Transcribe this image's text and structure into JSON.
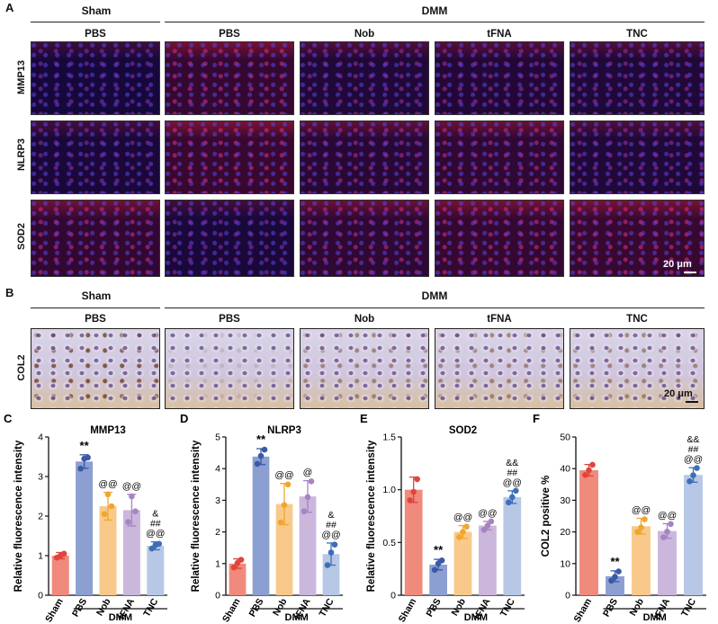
{
  "panel_a": {
    "letter": "A",
    "group_left": "Sham",
    "group_right": "DMM",
    "columns": [
      "PBS",
      "PBS",
      "Nob",
      "tFNA",
      "TNC"
    ],
    "rows": [
      "MMP13",
      "NLRP3",
      "SOD2"
    ],
    "scale_bar": "20 μm"
  },
  "panel_b": {
    "letter": "B",
    "group_left": "Sham",
    "group_right": "DMM",
    "columns": [
      "PBS",
      "PBS",
      "Nob",
      "tFNA",
      "TNC"
    ],
    "rows": [
      "COL2"
    ],
    "scale_bar": "20 μm"
  },
  "colors": {
    "Sham": "#ef8a7c",
    "PBS": "#8c9fd1",
    "Nob": "#f8c98a",
    "tFNA": "#cbb6dc",
    "TNC": "#b7c7e6",
    "dot_sham": "#e0453c",
    "dot_pbs": "#3a5aa8",
    "dot_nob": "#f0a62e",
    "dot_tfna": "#a883c4",
    "dot_tnc": "#3d6fb5"
  },
  "chart_data": [
    {
      "letter": "C",
      "type": "bar",
      "title": "MMP13",
      "ylabel": "Relative fluorescence intensity",
      "categories": [
        "Sham",
        "PBS",
        "Nob",
        "tFNA",
        "TNC"
      ],
      "values": [
        1.0,
        3.38,
        2.25,
        2.15,
        1.25
      ],
      "errors": [
        0.08,
        0.17,
        0.35,
        0.4,
        0.1
      ],
      "points": [
        [
          0.95,
          1.05,
          1.0
        ],
        [
          3.2,
          3.48,
          3.45
        ],
        [
          2.05,
          2.25,
          2.55
        ],
        [
          1.85,
          2.12,
          2.5
        ],
        [
          1.18,
          1.3,
          1.27
        ]
      ],
      "ylim": [
        0,
        4
      ],
      "yticks": [
        "0",
        "1",
        "2",
        "3",
        "4"
      ],
      "annotations": [
        [],
        [
          "**"
        ],
        [
          "@@"
        ],
        [
          "@@"
        ],
        [
          "&",
          "##",
          "@@"
        ]
      ],
      "group_label": "DMM"
    },
    {
      "letter": "D",
      "type": "bar",
      "title": "NLRP3",
      "ylabel": "Relative fluorescence intensity",
      "categories": [
        "Sham",
        "PBS",
        "Nob",
        "tFNA",
        "TNC"
      ],
      "values": [
        1.0,
        4.38,
        2.88,
        3.12,
        1.3
      ],
      "errors": [
        0.15,
        0.25,
        0.65,
        0.5,
        0.35
      ],
      "points": [
        [
          0.88,
          1.12,
          1.02
        ],
        [
          4.15,
          4.6,
          4.4
        ],
        [
          2.3,
          3.5,
          2.85
        ],
        [
          2.65,
          3.6,
          3.1
        ],
        [
          0.95,
          1.6,
          1.35
        ]
      ],
      "ylim": [
        0,
        5
      ],
      "yticks": [
        "0",
        "1",
        "2",
        "3",
        "4",
        "5"
      ],
      "annotations": [
        [],
        [
          "**"
        ],
        [
          "@@"
        ],
        [
          "@"
        ],
        [
          "&",
          "##",
          "@@"
        ]
      ],
      "group_label": "DMM"
    },
    {
      "letter": "E",
      "type": "bar",
      "title": "SOD2",
      "ylabel": "Relative fluorescence intensity",
      "categories": [
        "Sham",
        "PBS",
        "Nob",
        "tFNA",
        "TNC"
      ],
      "values": [
        1.0,
        0.29,
        0.6,
        0.66,
        0.93
      ],
      "errors": [
        0.12,
        0.05,
        0.06,
        0.04,
        0.06
      ],
      "points": [
        [
          0.9,
          1.1,
          0.98
        ],
        [
          0.24,
          0.33,
          0.3
        ],
        [
          0.55,
          0.65,
          0.6
        ],
        [
          0.62,
          0.7,
          0.66
        ],
        [
          0.88,
          0.99,
          0.93
        ]
      ],
      "ylim": [
        0,
        1.5
      ],
      "yticks": [
        "0",
        "0.5",
        "1.0",
        "1.5"
      ],
      "annotations": [
        [],
        [
          "**"
        ],
        [
          "@@"
        ],
        [
          "@@"
        ],
        [
          "&&",
          "##",
          "@@"
        ]
      ],
      "group_label": "DMM"
    },
    {
      "letter": "F",
      "type": "bar",
      "title": "",
      "ylabel": "COL2 positive %",
      "categories": [
        "Sham",
        "PBS",
        "Nob",
        "tFNA",
        "TNC"
      ],
      "values": [
        39.5,
        6.0,
        21.8,
        20.3,
        38.0
      ],
      "errors": [
        1.8,
        1.7,
        2.5,
        2.3,
        2.3
      ],
      "points": [
        [
          38.0,
          41.2,
          39.5
        ],
        [
          4.6,
          7.5,
          5.8
        ],
        [
          20.0,
          24.0,
          21.4
        ],
        [
          18.3,
          22.5,
          20.1
        ],
        [
          36.0,
          40.2,
          37.9
        ]
      ],
      "ylim": [
        0,
        50
      ],
      "yticks": [
        "0",
        "10",
        "20",
        "30",
        "40",
        "50"
      ],
      "annotations": [
        [],
        [
          "**"
        ],
        [
          "@@"
        ],
        [
          "@@"
        ],
        [
          "&&",
          "##",
          "@@"
        ]
      ],
      "group_label": "DMM"
    }
  ]
}
